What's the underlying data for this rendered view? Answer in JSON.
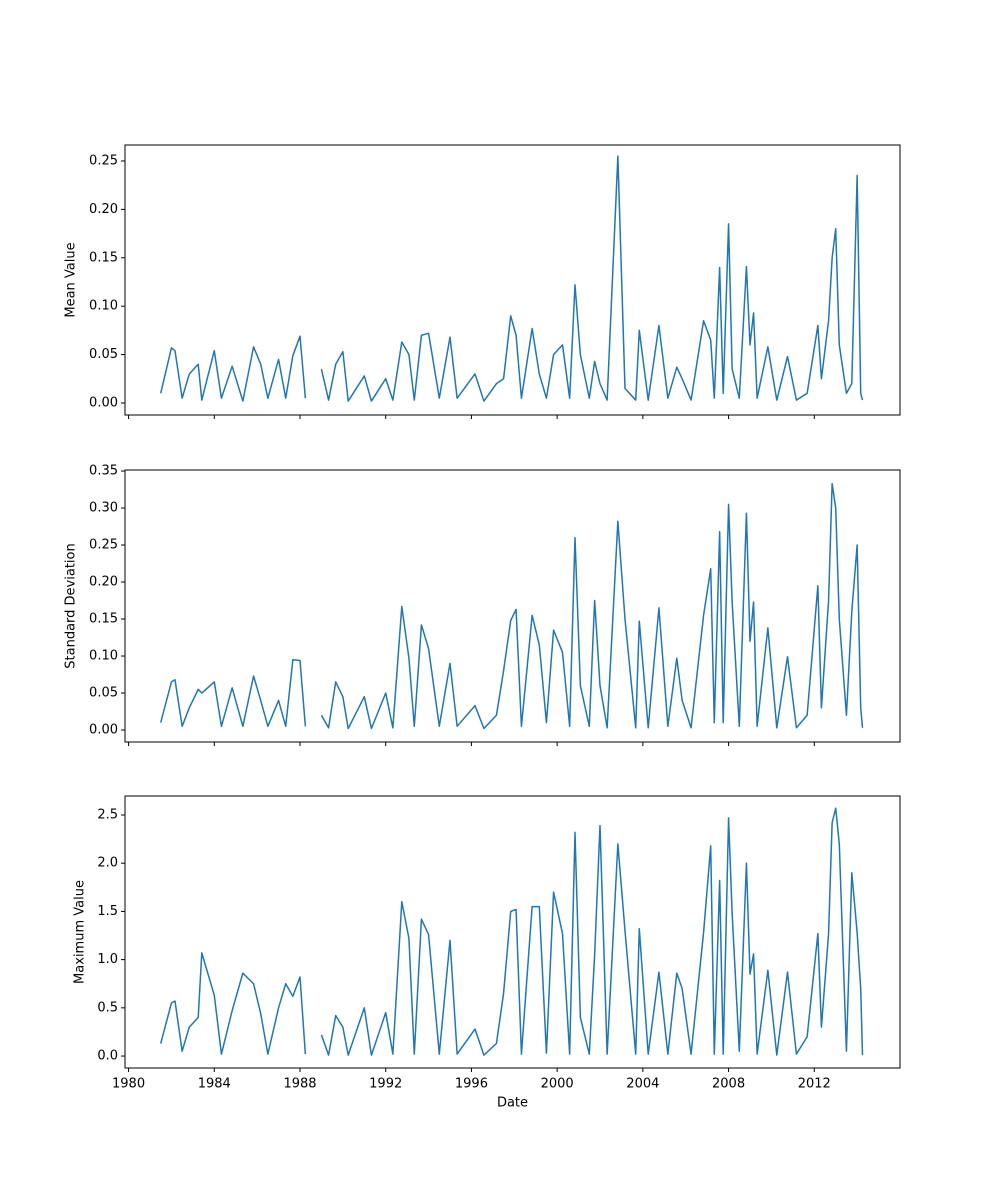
{
  "chart_data": [
    {
      "type": "line",
      "ylabel": "Mean Value",
      "color": "#1f77b4",
      "xlim": [
        "1979-11",
        "2016-01"
      ],
      "xticks": [
        "1980-01",
        "1984-01",
        "1988-01",
        "1992-01",
        "1996-01",
        "2000-01",
        "2004-01",
        "2008-01",
        "2012-01"
      ],
      "ylim": [
        -0.0124,
        0.2665
      ],
      "yticks": [
        {
          "value": 0,
          "label": "0.00"
        },
        0.05,
        {
          "value": 0.1,
          "label": "0.10"
        },
        0.15,
        {
          "value": 0.2,
          "label": "0.20"
        },
        0.25
      ],
      "x": [
        "1981-07",
        "1982-01",
        "1982-03",
        "1982-07",
        "1982-11",
        "1983-04",
        "1983-06",
        "1984-01",
        "1984-05",
        "1984-11",
        "1985-05",
        "1985-11",
        "1986-03",
        "1986-07",
        "1987-01",
        "1987-05",
        "1987-09",
        "1988-01",
        "1988-04",
        "1988-08",
        "1989-01",
        "1989-05",
        "1989-09",
        "1990-01",
        "1990-04",
        "1991-01",
        "1991-05",
        "1992-01",
        "1992-05",
        "1992-10",
        "1993-02",
        "1993-05",
        "1993-09",
        "1994-01",
        "1994-07",
        "1995-01",
        "1995-05",
        "1996-03",
        "1996-08",
        "1997-03",
        "1997-07",
        "1997-11",
        "1998-02",
        "1998-05",
        "1998-11",
        "1999-03",
        "1999-07",
        "1999-11",
        "2000-04",
        "2000-08",
        "2000-11",
        "2001-02",
        "2001-07",
        "2001-10",
        "2002-01",
        "2002-05",
        "2002-11",
        "2003-03",
        "2003-09",
        "2003-11",
        "2004-04",
        "2004-10",
        "2005-03",
        "2005-08",
        "2005-11",
        "2006-04",
        "2006-11",
        "2007-03",
        "2007-05",
        "2007-08",
        "2007-10",
        "2008-01",
        "2008-03",
        "2008-07",
        "2008-11",
        "2009-01",
        "2009-03",
        "2009-05",
        "2009-11",
        "2010-04",
        "2010-10",
        "2011-03",
        "2011-09",
        "2012-03",
        "2012-05",
        "2012-09",
        "2012-11",
        "2013-01",
        "2013-03",
        "2013-07",
        "2013-10",
        "2014-01",
        "2014-03",
        "2014-04"
      ],
      "values": [
        0.01,
        0.057,
        0.054,
        0.005,
        0.03,
        0.04,
        0.003,
        0.054,
        0.005,
        0.038,
        0.002,
        0.058,
        0.04,
        0.005,
        0.045,
        0.005,
        0.049,
        0.069,
        0.005,
        null,
        0.035,
        0.003,
        0.04,
        0.053,
        0.002,
        0.028,
        0.002,
        0.025,
        0.003,
        0.063,
        0.05,
        0.003,
        0.07,
        0.072,
        0.005,
        0.068,
        0.005,
        0.03,
        0.002,
        0.02,
        0.025,
        0.09,
        0.07,
        0.005,
        0.077,
        0.03,
        0.005,
        0.05,
        0.06,
        0.005,
        0.122,
        0.05,
        0.005,
        0.043,
        0.02,
        0.003,
        0.255,
        0.015,
        0.003,
        0.075,
        0.003,
        0.08,
        0.005,
        0.037,
        0.025,
        0.003,
        0.085,
        0.065,
        0.005,
        0.14,
        0.01,
        0.185,
        0.035,
        0.005,
        0.141,
        0.06,
        0.093,
        0.005,
        0.058,
        0.003,
        0.048,
        0.003,
        0.01,
        0.08,
        0.025,
        0.085,
        0.15,
        0.18,
        0.06,
        0.01,
        0.02,
        0.235,
        0.01,
        0.003
      ]
    },
    {
      "type": "line",
      "ylabel": "Standard Deviation",
      "color": "#1f77b4",
      "xlim": [
        "1979-11",
        "2016-01"
      ],
      "xticks": [
        "1980-01",
        "1984-01",
        "1988-01",
        "1992-01",
        "1996-01",
        "2000-01",
        "2004-01",
        "2008-01",
        "2012-01"
      ],
      "ylim": [
        -0.0162,
        0.3514
      ],
      "yticks": [
        {
          "value": 0,
          "label": "0.00"
        },
        0.05,
        {
          "value": 0.1,
          "label": "0.10"
        },
        0.15,
        {
          "value": 0.2,
          "label": "0.20"
        },
        0.25,
        {
          "value": 0.3,
          "label": "0.30"
        },
        0.35
      ],
      "x": [
        "1981-07",
        "1982-01",
        "1982-03",
        "1982-07",
        "1982-11",
        "1983-04",
        "1983-06",
        "1984-01",
        "1984-05",
        "1984-11",
        "1985-05",
        "1985-11",
        "1986-03",
        "1986-07",
        "1987-01",
        "1987-05",
        "1987-09",
        "1988-01",
        "1988-04",
        "1988-08",
        "1989-01",
        "1989-05",
        "1989-09",
        "1990-01",
        "1990-04",
        "1991-01",
        "1991-05",
        "1992-01",
        "1992-05",
        "1992-10",
        "1993-02",
        "1993-05",
        "1993-09",
        "1994-01",
        "1994-07",
        "1995-01",
        "1995-05",
        "1996-03",
        "1996-08",
        "1997-03",
        "1997-07",
        "1997-11",
        "1998-02",
        "1998-05",
        "1998-11",
        "1999-03",
        "1999-07",
        "1999-11",
        "2000-04",
        "2000-08",
        "2000-11",
        "2001-02",
        "2001-07",
        "2001-10",
        "2002-01",
        "2002-05",
        "2002-11",
        "2003-03",
        "2003-09",
        "2003-11",
        "2004-04",
        "2004-10",
        "2005-03",
        "2005-08",
        "2005-11",
        "2006-04",
        "2006-11",
        "2007-03",
        "2007-05",
        "2007-08",
        "2007-10",
        "2008-01",
        "2008-03",
        "2008-07",
        "2008-11",
        "2009-01",
        "2009-03",
        "2009-05",
        "2009-11",
        "2010-04",
        "2010-10",
        "2011-03",
        "2011-09",
        "2012-03",
        "2012-05",
        "2012-09",
        "2012-11",
        "2013-01",
        "2013-03",
        "2013-07",
        "2013-10",
        "2014-01",
        "2014-03",
        "2014-04"
      ],
      "values": [
        0.01,
        0.065,
        0.068,
        0.005,
        0.03,
        0.055,
        0.05,
        0.065,
        0.005,
        0.057,
        0.005,
        0.073,
        0.04,
        0.005,
        0.04,
        0.005,
        0.095,
        0.094,
        0.005,
        null,
        0.02,
        0.003,
        0.065,
        0.045,
        0.002,
        0.045,
        0.002,
        0.05,
        0.003,
        0.167,
        0.097,
        0.005,
        0.142,
        0.11,
        0.005,
        0.09,
        0.005,
        0.033,
        0.002,
        0.02,
        0.08,
        0.148,
        0.163,
        0.005,
        0.155,
        0.115,
        0.01,
        0.135,
        0.105,
        0.005,
        0.26,
        0.06,
        0.005,
        0.175,
        0.06,
        0.003,
        0.282,
        0.15,
        0.003,
        0.147,
        0.003,
        0.165,
        0.005,
        0.097,
        0.04,
        0.003,
        0.155,
        0.218,
        0.01,
        0.268,
        0.01,
        0.305,
        0.173,
        0.005,
        0.293,
        0.12,
        0.173,
        0.005,
        0.138,
        0.003,
        0.099,
        0.003,
        0.02,
        0.195,
        0.03,
        0.175,
        0.333,
        0.3,
        0.15,
        0.02,
        0.16,
        0.25,
        0.03,
        0.003
      ]
    },
    {
      "type": "line",
      "ylabel": "Maximum Value",
      "xlabel": "Date",
      "color": "#1f77b4",
      "xlim": [
        "1979-11",
        "2016-01"
      ],
      "xticks": [
        {
          "value": "1980-01",
          "label": "1980"
        },
        {
          "value": "1984-01",
          "label": "1984"
        },
        {
          "value": "1988-01",
          "label": "1988"
        },
        {
          "value": "1992-01",
          "label": "1992"
        },
        {
          "value": "1996-01",
          "label": "1996"
        },
        {
          "value": "2000-01",
          "label": "2000"
        },
        {
          "value": "2004-01",
          "label": "2004"
        },
        {
          "value": "2008-01",
          "label": "2008"
        },
        {
          "value": "2012-01",
          "label": "2012"
        }
      ],
      "ylim": [
        -0.124,
        2.697
      ],
      "yticks": [
        {
          "value": 0,
          "label": "0.0"
        },
        0.5,
        {
          "value": 1,
          "label": "1.0"
        },
        1.5,
        {
          "value": 2,
          "label": "2.0"
        },
        2.5
      ],
      "x": [
        "1981-07",
        "1982-01",
        "1982-03",
        "1982-07",
        "1982-11",
        "1983-04",
        "1983-06",
        "1984-01",
        "1984-05",
        "1984-11",
        "1985-05",
        "1985-11",
        "1986-03",
        "1986-07",
        "1987-01",
        "1987-05",
        "1987-09",
        "1988-01",
        "1988-04",
        "1988-08",
        "1989-01",
        "1989-05",
        "1989-09",
        "1990-01",
        "1990-04",
        "1991-01",
        "1991-05",
        "1992-01",
        "1992-05",
        "1992-10",
        "1993-02",
        "1993-05",
        "1993-09",
        "1994-01",
        "1994-07",
        "1995-01",
        "1995-05",
        "1996-03",
        "1996-08",
        "1997-03",
        "1997-07",
        "1997-11",
        "1998-02",
        "1998-05",
        "1998-11",
        "1999-03",
        "1999-07",
        "1999-11",
        "2000-04",
        "2000-08",
        "2000-11",
        "2001-02",
        "2001-07",
        "2001-10",
        "2002-01",
        "2002-05",
        "2002-11",
        "2003-03",
        "2003-09",
        "2003-11",
        "2004-04",
        "2004-10",
        "2005-03",
        "2005-08",
        "2005-11",
        "2006-04",
        "2006-11",
        "2007-03",
        "2007-05",
        "2007-08",
        "2007-10",
        "2008-01",
        "2008-03",
        "2008-07",
        "2008-11",
        "2009-01",
        "2009-03",
        "2009-05",
        "2009-11",
        "2010-04",
        "2010-10",
        "2011-03",
        "2011-09",
        "2012-03",
        "2012-05",
        "2012-09",
        "2012-11",
        "2013-01",
        "2013-03",
        "2013-07",
        "2013-10",
        "2014-01",
        "2014-03",
        "2014-04"
      ],
      "values": [
        0.13,
        0.55,
        0.57,
        0.05,
        0.3,
        0.4,
        1.07,
        0.63,
        0.02,
        0.47,
        0.86,
        0.75,
        0.44,
        0.02,
        0.5,
        0.75,
        0.62,
        0.82,
        0.02,
        null,
        0.22,
        0.01,
        0.42,
        0.3,
        0.01,
        0.5,
        0.01,
        0.45,
        0.02,
        1.6,
        1.22,
        0.02,
        1.42,
        1.26,
        0.02,
        1.2,
        0.02,
        0.28,
        0.01,
        0.13,
        0.65,
        1.5,
        1.52,
        0.02,
        1.55,
        1.55,
        0.03,
        1.7,
        1.27,
        0.02,
        2.32,
        0.4,
        0.02,
        1.05,
        2.39,
        0.02,
        2.2,
        1.3,
        0.02,
        1.32,
        0.02,
        0.87,
        0.02,
        0.86,
        0.7,
        0.02,
        1.28,
        2.18,
        0.02,
        1.82,
        0.02,
        2.47,
        1.48,
        0.05,
        2.0,
        0.85,
        1.06,
        0.02,
        0.89,
        0.01,
        0.87,
        0.02,
        0.2,
        1.27,
        0.3,
        1.27,
        2.42,
        2.57,
        2.2,
        0.05,
        1.9,
        1.28,
        0.7,
        0.01
      ]
    }
  ]
}
